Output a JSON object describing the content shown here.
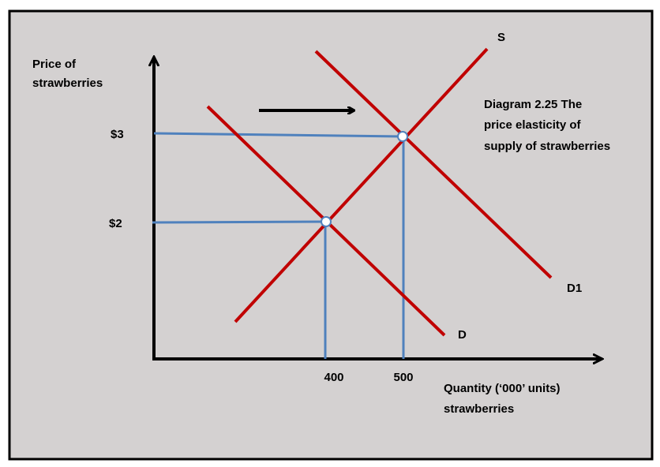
{
  "axes": {
    "y_label": [
      "Price of",
      "strawberries"
    ],
    "x_label": [
      "Quantity (‘000’ units)",
      "strawberries"
    ],
    "y_ticks": [
      "$3",
      "$2"
    ],
    "x_ticks": [
      "400",
      "500"
    ]
  },
  "curves": {
    "supply": "S",
    "demand": "D",
    "new_demand": "D1"
  },
  "caption": [
    "Diagram 2.25 The",
    "price elasticity of",
    "supply of strawberries"
  ]
}
